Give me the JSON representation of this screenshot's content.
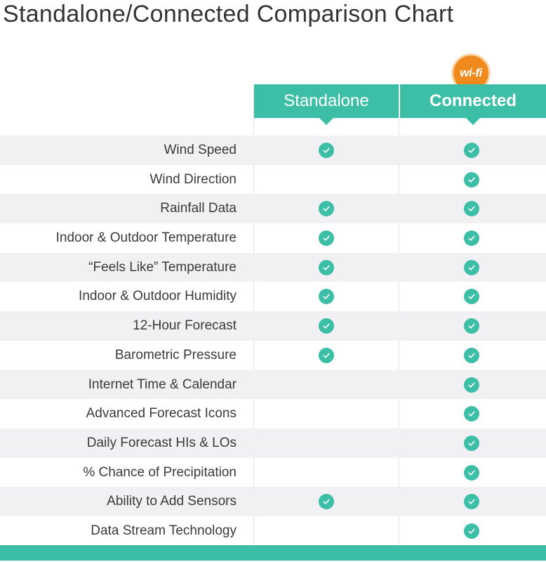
{
  "title": "Standalone/Connected Comparison Chart",
  "badge": "wi-fi",
  "columns": {
    "standalone": "Standalone",
    "connected": "Connected"
  },
  "colors": {
    "accent": "#3cbfa6",
    "badge": "#f08a1c",
    "row_shade": "#f1f1f4"
  },
  "rows": [
    {
      "label": "Wind Speed",
      "standalone": true,
      "connected": true
    },
    {
      "label": "Wind Direction",
      "standalone": false,
      "connected": true
    },
    {
      "label": "Rainfall Data",
      "standalone": true,
      "connected": true
    },
    {
      "label": "Indoor & Outdoor Temperature",
      "standalone": true,
      "connected": true
    },
    {
      "label": "“Feels Like” Temperature",
      "standalone": true,
      "connected": true
    },
    {
      "label": "Indoor & Outdoor Humidity",
      "standalone": true,
      "connected": true
    },
    {
      "label": "12-Hour Forecast",
      "standalone": true,
      "connected": true
    },
    {
      "label": "Barometric Pressure",
      "standalone": true,
      "connected": true
    },
    {
      "label": "Internet Time & Calendar",
      "standalone": false,
      "connected": true
    },
    {
      "label": "Advanced Forecast Icons",
      "standalone": false,
      "connected": true
    },
    {
      "label": "Daily Forecast HIs & LOs",
      "standalone": false,
      "connected": true
    },
    {
      "label": "% Chance of Precipitation",
      "standalone": false,
      "connected": true
    },
    {
      "label": "Ability to Add Sensors",
      "standalone": true,
      "connected": true
    },
    {
      "label": "Data Stream Technology",
      "standalone": false,
      "connected": true
    }
  ]
}
